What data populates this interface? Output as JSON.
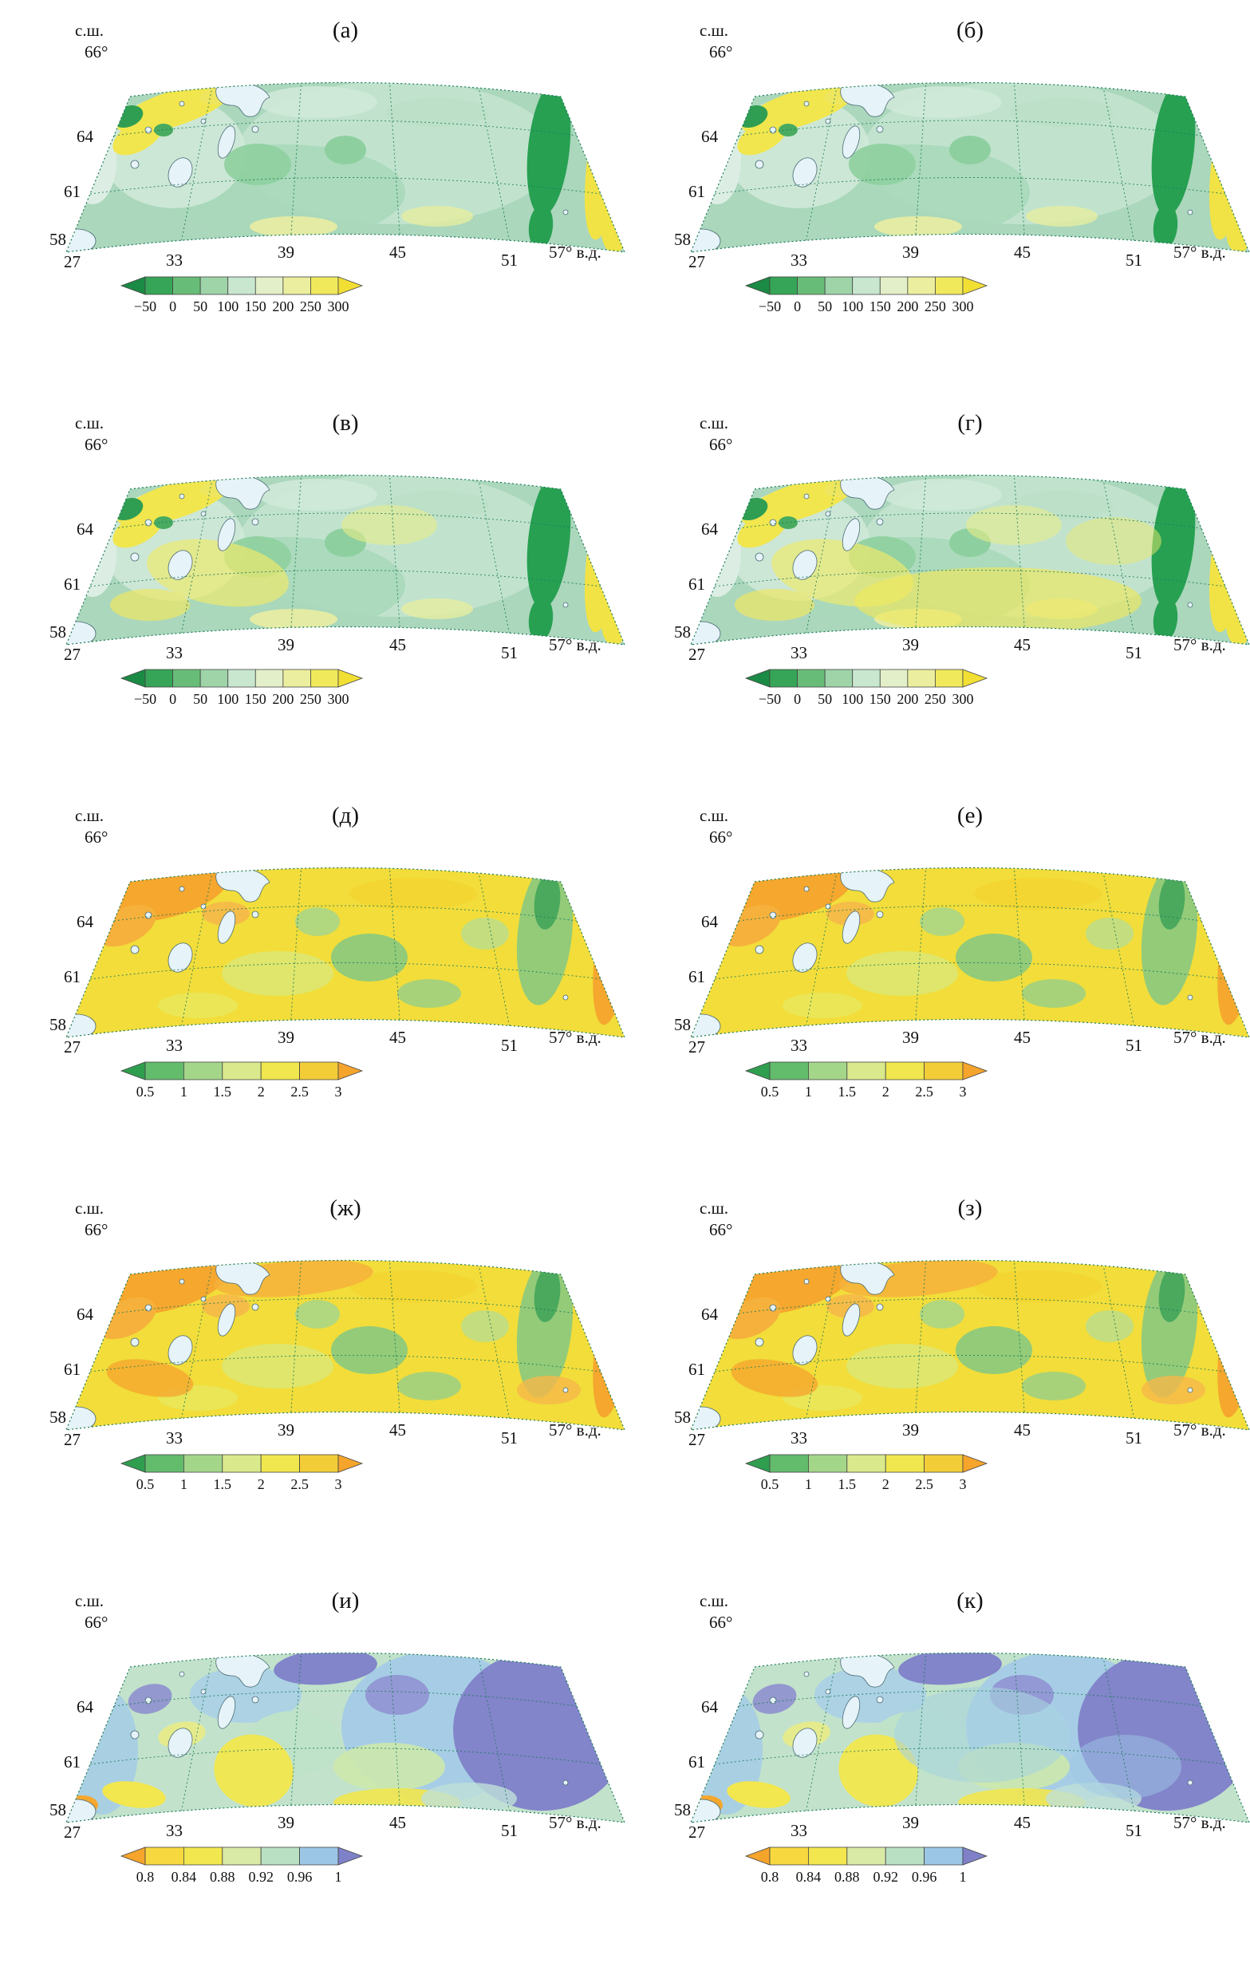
{
  "figure": {
    "axis": {
      "ns": "с.ш.",
      "lat_top": "66°",
      "lats": [
        "64",
        "61",
        "58"
      ],
      "lon_first": "27",
      "lons": [
        "33",
        "39",
        "45",
        "51"
      ],
      "lon_last": "57° в.д."
    },
    "colorbars": {
      "anomaly": {
        "ticks": [
          "−50",
          "0",
          "50",
          "100",
          "150",
          "200",
          "250",
          "300"
        ],
        "colors": [
          "#1b8a44",
          "#36a557",
          "#67bd77",
          "#9ed4a8",
          "#c9e7cf",
          "#e3efc8",
          "#ebee9e",
          "#f0e95c",
          "#f2df33"
        ]
      },
      "ratio": {
        "ticks": [
          "0.5",
          "1",
          "1.5",
          "2",
          "2.5",
          "3"
        ],
        "colors": [
          "#2f9e4f",
          "#63bb6c",
          "#a4d68a",
          "#d9e98c",
          "#f0e74e",
          "#f3cd38",
          "#f5a42c"
        ]
      },
      "corr": {
        "ticks": [
          "0.8",
          "0.84",
          "0.88",
          "0.92",
          "0.96",
          "1"
        ],
        "colors": [
          "#f5a42c",
          "#f7d83e",
          "#f2e74e",
          "#d9e9a6",
          "#b9e0c2",
          "#9cc6e6",
          "#7f81c8"
        ]
      }
    },
    "panels": [
      {
        "label": "(а)",
        "type": "A",
        "variant": 0,
        "colorbar": "anomaly"
      },
      {
        "label": "(б)",
        "type": "A",
        "variant": 0,
        "colorbar": "anomaly"
      },
      {
        "label": "(в)",
        "type": "A",
        "variant": 1,
        "colorbar": "anomaly"
      },
      {
        "label": "(г)",
        "type": "A",
        "variant": 2,
        "colorbar": "anomaly"
      },
      {
        "label": "(д)",
        "type": "B",
        "variant": 0,
        "colorbar": "ratio"
      },
      {
        "label": "(е)",
        "type": "B",
        "variant": 0,
        "colorbar": "ratio"
      },
      {
        "label": "(ж)",
        "type": "B",
        "variant": 1,
        "colorbar": "ratio"
      },
      {
        "label": "(з)",
        "type": "B",
        "variant": 1,
        "colorbar": "ratio"
      },
      {
        "label": "(и)",
        "type": "C",
        "variant": 0,
        "colorbar": "corr"
      },
      {
        "label": "(к)",
        "type": "C",
        "variant": 1,
        "colorbar": "corr"
      }
    ]
  }
}
